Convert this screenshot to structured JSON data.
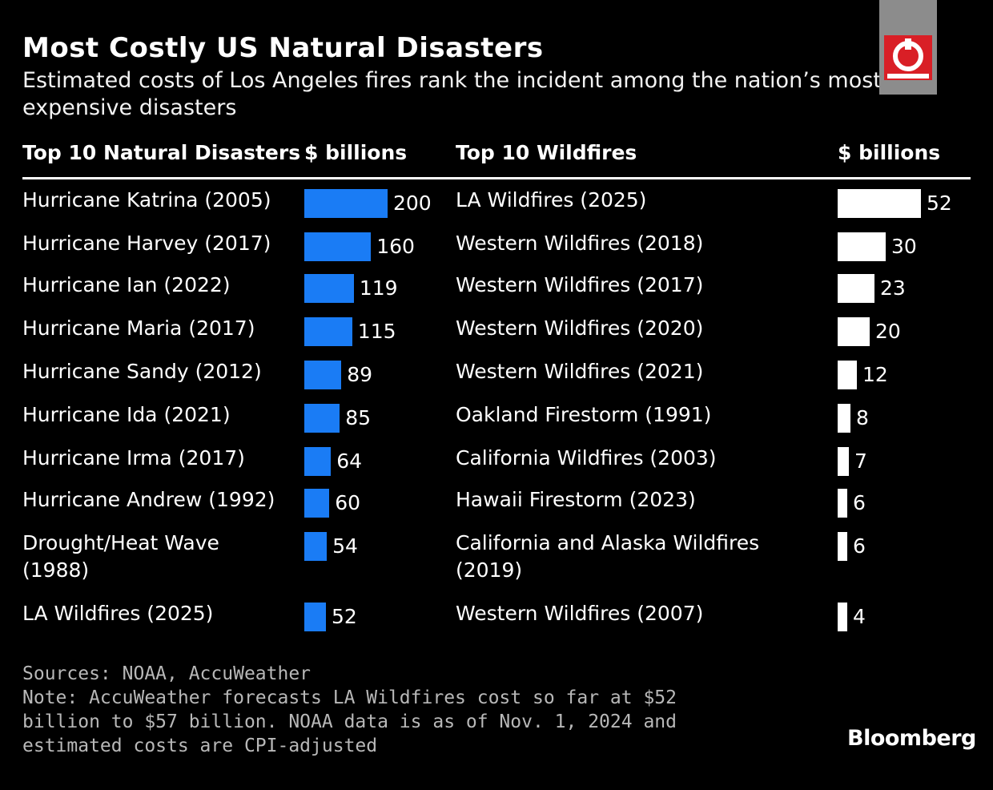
{
  "title": "Most Costly US Natural Disasters",
  "subtitle": "Estimated costs of Los Angeles fires rank the incident among the nation’s most expensive disasters",
  "chart_data": [
    {
      "type": "bar",
      "orientation": "horizontal",
      "title": "Top 10 Natural Disasters",
      "unit_label": "$ billions",
      "categories": [
        "Hurricane Katrina (2005)",
        "Hurricane Harvey (2017)",
        "Hurricane Ian (2022)",
        "Hurricane Maria (2017)",
        "Hurricane Sandy (2012)",
        "Hurricane Ida (2021)",
        "Hurricane Irma (2017)",
        "Hurricane Andrew (1992)",
        "Drought/Heat Wave (1988)",
        "LA Wildfires (2025)"
      ],
      "values": [
        200,
        160,
        119,
        115,
        89,
        85,
        64,
        60,
        54,
        52
      ],
      "color": "#1a7cf5"
    },
    {
      "type": "bar",
      "orientation": "horizontal",
      "title": "Top 10 Wildfires",
      "unit_label": "$ billions",
      "categories": [
        "LA Wildfires (2025)",
        "Western Wildfires (2018)",
        "Western Wildfires (2017)",
        "Western Wildfires (2020)",
        "Western Wildfires (2021)",
        "Oakland Firestorm (1991)",
        "California Wildfires (2003)",
        "Hawaii Firestorm (2023)",
        "California and Alaska Wildfires (2019)",
        "Western Wildfires (2007)"
      ],
      "values": [
        52,
        30,
        23,
        20,
        12,
        8,
        7,
        6,
        6,
        4
      ],
      "color": "#ffffff"
    }
  ],
  "footer": {
    "sources": "Sources: NOAA, AccuWeather",
    "note": "Note: AccuWeather forecasts LA Wildfires cost so far at $52 billion to $57 billion. NOAA data is as of Nov. 1, 2024 and estimated costs are CPI-adjusted"
  },
  "brand": "Bloomberg",
  "colors": {
    "background": "#000000",
    "disaster_bar": "#1a7cf5",
    "wildfire_bar": "#ffffff"
  }
}
